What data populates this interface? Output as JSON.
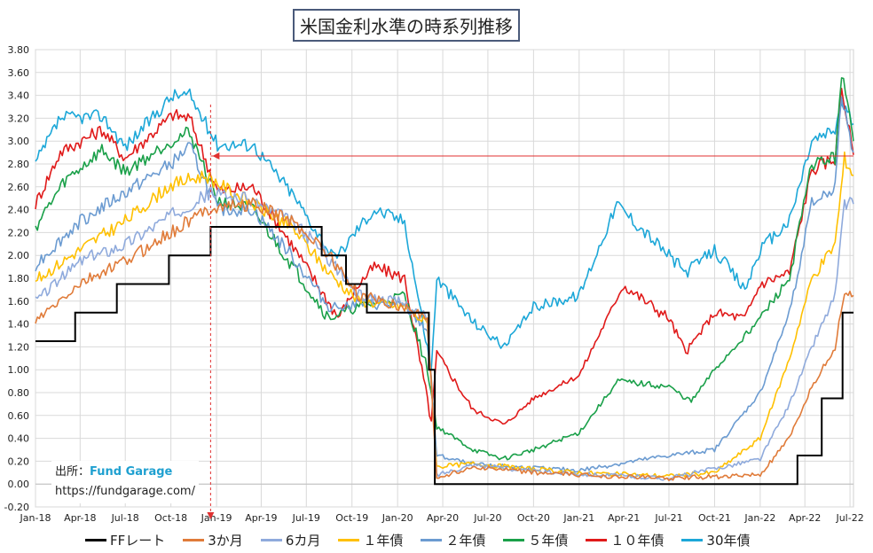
{
  "chart_data": {
    "type": "line",
    "title": "米国金利水準の時系列推移",
    "ylim": [
      -0.2,
      3.8
    ],
    "yticks": [
      "-0.20",
      "0.00",
      "0.20",
      "0.40",
      "0.60",
      "0.80",
      "1.00",
      "1.20",
      "1.40",
      "1.60",
      "1.80",
      "2.00",
      "2.20",
      "2.40",
      "2.60",
      "2.80",
      "3.00",
      "3.20",
      "3.40",
      "3.60",
      "3.80"
    ],
    "xlim": [
      "2018-01-01",
      "2022-07-08"
    ],
    "xticks": [
      {
        "date": "2018-01-01",
        "label": "Jan-18"
      },
      {
        "date": "2018-04-01",
        "label": "Apr-18"
      },
      {
        "date": "2018-07-01",
        "label": "Jul-18"
      },
      {
        "date": "2018-10-01",
        "label": "Oct-18"
      },
      {
        "date": "2019-01-01",
        "label": "Jan-19"
      },
      {
        "date": "2019-04-01",
        "label": "Apr-19"
      },
      {
        "date": "2019-07-01",
        "label": "Jul-19"
      },
      {
        "date": "2019-10-01",
        "label": "Oct-19"
      },
      {
        "date": "2020-01-01",
        "label": "Jan-20"
      },
      {
        "date": "2020-04-01",
        "label": "Apr-20"
      },
      {
        "date": "2020-07-01",
        "label": "Jul-20"
      },
      {
        "date": "2020-10-01",
        "label": "Oct-20"
      },
      {
        "date": "2021-01-01",
        "label": "Jan-21"
      },
      {
        "date": "2021-04-01",
        "label": "Apr-21"
      },
      {
        "date": "2021-07-01",
        "label": "Jul-21"
      },
      {
        "date": "2021-10-01",
        "label": "Oct-21"
      },
      {
        "date": "2022-01-01",
        "label": "Jan-22"
      },
      {
        "date": "2022-04-01",
        "label": "Apr-22"
      },
      {
        "date": "2022-07-01",
        "label": "Jul-22"
      }
    ],
    "grid": true,
    "legend_position": "bottom",
    "reference_line": {
      "y": 2.87,
      "color": "#e03030"
    },
    "marker": {
      "date": "2018-12-20",
      "color": "#e03030"
    },
    "series": [
      {
        "name": "FFレート",
        "color": "#000000",
        "step": true,
        "x": [
          "2018-01-01",
          "2018-03-22",
          "2018-06-14",
          "2018-09-27",
          "2018-12-20",
          "2019-08-01",
          "2019-09-19",
          "2019-10-31",
          "2020-03-04",
          "2020-03-16",
          "2022-03-17",
          "2022-05-05",
          "2022-06-16",
          "2022-07-08"
        ],
        "y": [
          1.25,
          1.5,
          1.75,
          2.0,
          2.25,
          2.0,
          1.75,
          1.5,
          1.0,
          0.0,
          0.25,
          0.75,
          1.5,
          1.5
        ]
      },
      {
        "name": "3か月",
        "color": "#e07b39",
        "x": [
          "2018-01-01",
          "2018-04-01",
          "2018-07-01",
          "2018-10-01",
          "2018-12-20",
          "2019-03-15",
          "2019-06-01",
          "2019-08-01",
          "2019-10-15",
          "2020-01-15",
          "2020-03-01",
          "2020-03-20",
          "2020-06-01",
          "2020-10-01",
          "2021-01-01",
          "2021-07-01",
          "2022-01-01",
          "2022-03-01",
          "2022-04-15",
          "2022-06-01",
          "2022-06-20",
          "2022-07-08"
        ],
        "y": [
          1.42,
          1.75,
          1.95,
          2.2,
          2.42,
          2.45,
          2.3,
          2.08,
          1.65,
          1.55,
          1.45,
          0.05,
          0.15,
          0.1,
          0.08,
          0.05,
          0.08,
          0.4,
          0.85,
          1.2,
          1.7,
          1.65
        ]
      },
      {
        "name": "6カ月",
        "color": "#8faadc",
        "x": [
          "2018-01-01",
          "2018-04-01",
          "2018-07-01",
          "2018-10-01",
          "2018-12-20",
          "2019-03-15",
          "2019-06-01",
          "2019-08-01",
          "2019-10-15",
          "2020-01-15",
          "2020-03-01",
          "2020-03-20",
          "2020-06-01",
          "2020-10-01",
          "2021-01-01",
          "2021-07-01",
          "2022-01-01",
          "2022-03-01",
          "2022-04-15",
          "2022-06-01",
          "2022-06-20",
          "2022-07-08"
        ],
        "y": [
          1.6,
          1.95,
          2.1,
          2.35,
          2.55,
          2.48,
          2.3,
          2.05,
          1.65,
          1.58,
          1.45,
          0.08,
          0.17,
          0.11,
          0.09,
          0.05,
          0.22,
          0.7,
          1.2,
          1.65,
          2.45,
          2.45
        ]
      },
      {
        "name": "１年債",
        "color": "#ffc000",
        "x": [
          "2018-01-01",
          "2018-04-01",
          "2018-07-01",
          "2018-10-01",
          "2018-12-10",
          "2019-01-15",
          "2019-03-15",
          "2019-06-01",
          "2019-08-15",
          "2019-10-15",
          "2020-01-15",
          "2020-03-01",
          "2020-03-20",
          "2020-06-01",
          "2020-10-01",
          "2021-01-01",
          "2021-07-01",
          "2021-10-01",
          "2022-01-01",
          "2022-03-01",
          "2022-04-15",
          "2022-06-01",
          "2022-06-20",
          "2022-07-08"
        ],
        "y": [
          1.78,
          2.05,
          2.3,
          2.62,
          2.7,
          2.6,
          2.45,
          2.25,
          1.85,
          1.6,
          1.55,
          1.4,
          0.15,
          0.18,
          0.13,
          0.1,
          0.07,
          0.1,
          0.4,
          1.1,
          1.8,
          2.1,
          2.85,
          2.7
        ]
      },
      {
        "name": "２年債",
        "color": "#6b9bd1",
        "x": [
          "2018-01-01",
          "2018-04-01",
          "2018-07-01",
          "2018-10-01",
          "2018-11-08",
          "2019-01-03",
          "2019-03-15",
          "2019-06-01",
          "2019-08-15",
          "2019-10-15",
          "2020-01-15",
          "2020-03-01",
          "2020-03-20",
          "2020-06-01",
          "2020-10-01",
          "2021-01-01",
          "2021-07-01",
          "2021-10-01",
          "2022-01-01",
          "2022-03-01",
          "2022-04-15",
          "2022-06-01",
          "2022-06-14",
          "2022-07-08"
        ],
        "y": [
          1.92,
          2.3,
          2.55,
          2.8,
          2.95,
          2.4,
          2.4,
          2.0,
          1.55,
          1.58,
          1.55,
          1.35,
          0.25,
          0.17,
          0.14,
          0.12,
          0.25,
          0.3,
          0.8,
          1.5,
          2.45,
          2.6,
          3.4,
          2.9
        ]
      },
      {
        "name": "５年債",
        "color": "#1aa049",
        "x": [
          "2018-01-01",
          "2018-03-01",
          "2018-05-15",
          "2018-07-01",
          "2018-10-01",
          "2018-11-08",
          "2019-01-03",
          "2019-03-15",
          "2019-06-01",
          "2019-08-15",
          "2019-10-15",
          "2020-01-15",
          "2020-03-01",
          "2020-03-20",
          "2020-06-01",
          "2020-08-01",
          "2020-10-01",
          "2021-01-01",
          "2021-03-20",
          "2021-07-01",
          "2021-08-15",
          "2021-10-01",
          "2022-01-01",
          "2022-03-01",
          "2022-04-15",
          "2022-06-01",
          "2022-06-14",
          "2022-07-08"
        ],
        "y": [
          2.25,
          2.65,
          2.92,
          2.73,
          3.0,
          3.08,
          2.48,
          2.4,
          1.92,
          1.45,
          1.55,
          1.65,
          1.0,
          0.5,
          0.3,
          0.22,
          0.3,
          0.45,
          0.9,
          0.85,
          0.72,
          1.0,
          1.45,
          1.8,
          2.8,
          2.85,
          3.6,
          3.0
        ]
      },
      {
        "name": "１０年債",
        "color": "#e01a1a",
        "x": [
          "2018-01-01",
          "2018-02-20",
          "2018-05-15",
          "2018-07-01",
          "2018-10-05",
          "2018-11-08",
          "2019-01-03",
          "2019-03-15",
          "2019-06-01",
          "2019-09-03",
          "2019-10-15",
          "2019-11-15",
          "2020-01-15",
          "2020-03-09",
          "2020-03-20",
          "2020-06-01",
          "2020-08-04",
          "2020-10-01",
          "2021-01-01",
          "2021-03-31",
          "2021-07-01",
          "2021-08-04",
          "2021-10-01",
          "2021-12-01",
          "2022-01-01",
          "2022-03-01",
          "2022-04-15",
          "2022-06-01",
          "2022-06-14",
          "2022-07-08"
        ],
        "y": [
          2.45,
          2.9,
          3.1,
          2.85,
          3.23,
          3.2,
          2.56,
          2.6,
          2.1,
          1.46,
          1.75,
          1.9,
          1.8,
          0.55,
          1.15,
          0.65,
          0.52,
          0.75,
          0.95,
          1.74,
          1.45,
          1.15,
          1.5,
          1.45,
          1.75,
          1.85,
          2.75,
          2.85,
          3.47,
          2.88
        ]
      },
      {
        "name": "30年債",
        "color": "#1ca7d8",
        "x": [
          "2018-01-01",
          "2018-02-20",
          "2018-05-15",
          "2018-07-01",
          "2018-10-05",
          "2018-11-08",
          "2019-01-03",
          "2019-03-15",
          "2019-06-01",
          "2019-08-28",
          "2019-10-15",
          "2019-11-15",
          "2020-01-15",
          "2020-03-09",
          "2020-03-20",
          "2020-06-01",
          "2020-08-04",
          "2020-10-01",
          "2021-01-01",
          "2021-03-18",
          "2021-07-01",
          "2021-08-04",
          "2021-10-01",
          "2021-12-01",
          "2022-01-01",
          "2022-03-01",
          "2022-04-15",
          "2022-06-01",
          "2022-06-14",
          "2022-07-08"
        ],
        "y": [
          2.8,
          3.2,
          3.22,
          2.95,
          3.4,
          3.4,
          2.97,
          2.97,
          2.55,
          1.96,
          2.25,
          2.4,
          2.3,
          1.0,
          1.8,
          1.42,
          1.2,
          1.55,
          1.65,
          2.45,
          2.0,
          1.85,
          2.05,
          1.7,
          2.05,
          2.3,
          3.0,
          3.1,
          3.35,
          3.15
        ]
      }
    ]
  },
  "source": {
    "label": "出所：",
    "brand": "Fund Garage",
    "url": "https://fundgarage.com/"
  }
}
